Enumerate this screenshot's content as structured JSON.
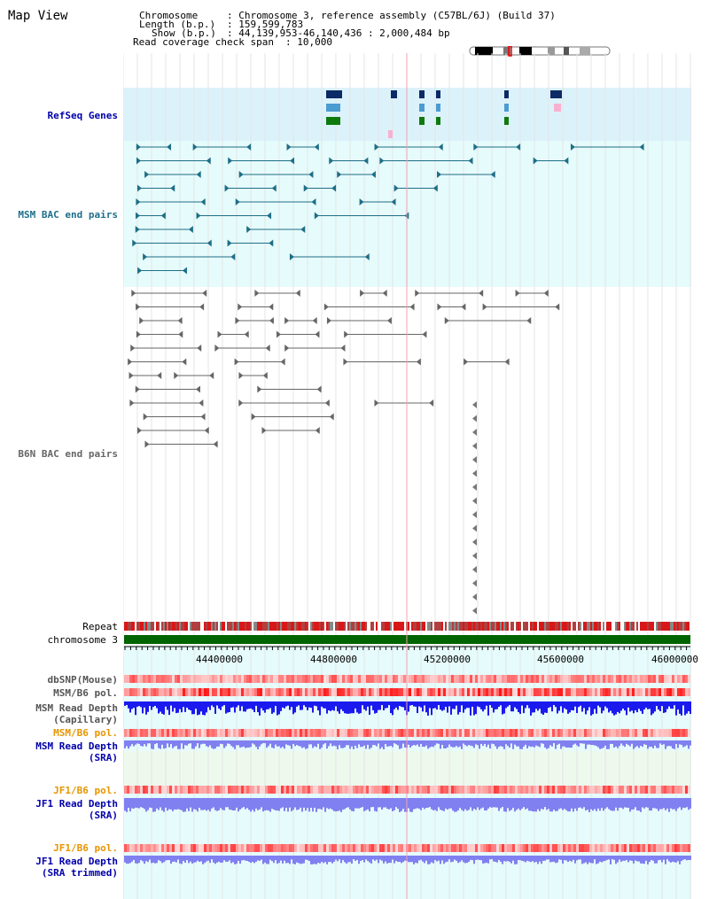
{
  "header": {
    "title": "Map View",
    "chromosome_label": "Chromosome",
    "chromosome_value": ": Chromosome 3, reference assembly (C57BL/6J) (Build 37)",
    "length_label": "Length (b.p.)",
    "length_value": ": 159,599,783",
    "show_label": "Show (b.p.)",
    "show_value": ": 44,139,953-46,140,436 : 2,000,484 bp",
    "coverage_label": "Read coverage check span",
    "coverage_value": ": 10,000"
  },
  "tracks": {
    "refseq": "RefSeq Genes",
    "msm_bac": "MSM BAC end pairs",
    "b6n_bac": "B6N BAC end pairs",
    "repeat": "Repeat",
    "chromosome": "chromosome 3",
    "dbsnp": "dbSNP(Mouse)",
    "msm_b6_pol_1": "MSM/B6 pol.",
    "msm_depth_cap_1": "MSM Read Depth",
    "msm_depth_cap_2": "(Capillary)",
    "msm_b6_pol_2": "MSM/B6 pol.",
    "msm_depth_sra_1": "MSM Read Depth",
    "msm_depth_sra_2": "(SRA)",
    "jf1_b6_pol_1": "JF1/B6 pol.",
    "jf1_depth_sra_1": "JF1 Read Depth",
    "jf1_depth_sra_2": "(SRA)",
    "jf1_b6_pol_2": "JF1/B6 pol.",
    "jf1_depth_trim_1": "JF1 Read Depth",
    "jf1_depth_trim_2": "(SRA trimmed)"
  },
  "axis": {
    "ticks": [
      "44400000",
      "44800000",
      "45200000",
      "45600000",
      "46000000"
    ]
  },
  "colors": {
    "refseq_bg": "#dcf2fb",
    "bac_bg": "#e6fbfb",
    "msm_feature": "#1e6e87",
    "b6n_feature": "#666666",
    "refseq_dark": "#0b2a66",
    "refseq_mid": "#4a9cd1",
    "refseq_green": "#0e7a0e",
    "chrom_green": "#006400",
    "repeat_red": "#d81818",
    "depth_blue": "#1a1aee",
    "depth_light": "#8080f0",
    "label_blue": "#0000aa",
    "label_orange": "#e69500",
    "label_teal": "#1f6f8b"
  }
}
